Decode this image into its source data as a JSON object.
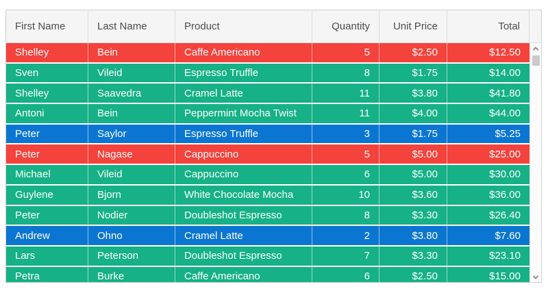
{
  "grid": {
    "columns": [
      {
        "label": "First Name",
        "key": "first_name",
        "align": "left"
      },
      {
        "label": "Last Name",
        "key": "last_name",
        "align": "left"
      },
      {
        "label": "Product",
        "key": "product",
        "align": "left"
      },
      {
        "label": "Quantity",
        "key": "quantity",
        "align": "right"
      },
      {
        "label": "Unit Price",
        "key": "unit_price",
        "align": "right"
      },
      {
        "label": "Total",
        "key": "total",
        "align": "right"
      }
    ],
    "rows": [
      {
        "first_name": "Shelley",
        "last_name": "Bein",
        "product": "Caffe Americano",
        "quantity": "5",
        "unit_price": "$2.50",
        "total": "$12.50",
        "color": "red"
      },
      {
        "first_name": "Sven",
        "last_name": "Vileid",
        "product": "Espresso Truffle",
        "quantity": "8",
        "unit_price": "$1.75",
        "total": "$14.00",
        "color": "green"
      },
      {
        "first_name": "Shelley",
        "last_name": "Saavedra",
        "product": "Cramel Latte",
        "quantity": "11",
        "unit_price": "$3.80",
        "total": "$41.80",
        "color": "green"
      },
      {
        "first_name": "Antoni",
        "last_name": "Bein",
        "product": "Peppermint Mocha Twist",
        "quantity": "11",
        "unit_price": "$4.00",
        "total": "$44.00",
        "color": "green"
      },
      {
        "first_name": "Peter",
        "last_name": "Saylor",
        "product": "Espresso Truffle",
        "quantity": "3",
        "unit_price": "$1.75",
        "total": "$5.25",
        "color": "blue"
      },
      {
        "first_name": "Peter",
        "last_name": "Nagase",
        "product": "Cappuccino",
        "quantity": "5",
        "unit_price": "$5.00",
        "total": "$25.00",
        "color": "red"
      },
      {
        "first_name": "Michael",
        "last_name": "Vileid",
        "product": "Cappuccino",
        "quantity": "6",
        "unit_price": "$5.00",
        "total": "$30.00",
        "color": "green"
      },
      {
        "first_name": "Guylene",
        "last_name": "Bjorn",
        "product": "White Chocolate Mocha",
        "quantity": "10",
        "unit_price": "$3.60",
        "total": "$36.00",
        "color": "green"
      },
      {
        "first_name": "Peter",
        "last_name": "Nodier",
        "product": "Doubleshot Espresso",
        "quantity": "8",
        "unit_price": "$3.30",
        "total": "$26.40",
        "color": "green"
      },
      {
        "first_name": "Andrew",
        "last_name": "Ohno",
        "product": "Cramel Latte",
        "quantity": "2",
        "unit_price": "$3.80",
        "total": "$7.60",
        "color": "blue"
      },
      {
        "first_name": "Lars",
        "last_name": "Peterson",
        "product": "Doubleshot Espresso",
        "quantity": "7",
        "unit_price": "$3.30",
        "total": "$23.10",
        "color": "green"
      },
      {
        "first_name": "Petra",
        "last_name": "Burke",
        "product": "Caffe Americano",
        "quantity": "6",
        "unit_price": "$2.50",
        "total": "$15.00",
        "color": "green"
      }
    ],
    "colors": {
      "red": "#F4423C",
      "green": "#16B186",
      "blue": "#0B76D1",
      "header_bg": "#F5F5F5",
      "header_text": "#4C4C4C",
      "cell_text": "#FFFFFF"
    },
    "scrollbar": {
      "up_icon": "chevron-up-icon",
      "down_icon": "chevron-down-icon"
    }
  }
}
